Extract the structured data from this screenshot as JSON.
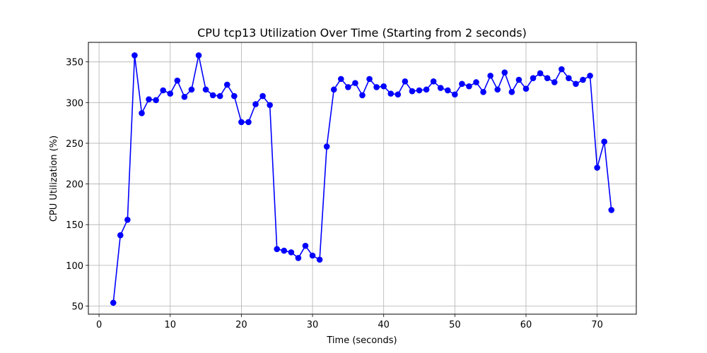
{
  "chart_data": {
    "type": "line",
    "title": "CPU tcp13 Utilization Over Time (Starting from 2 seconds)",
    "xlabel": "Time (seconds)",
    "ylabel": "CPU Utilization (%)",
    "xlim": [
      -1.5,
      75.5
    ],
    "ylim": [
      40,
      374
    ],
    "xticks": [
      0,
      10,
      20,
      30,
      40,
      50,
      60,
      70
    ],
    "yticks": [
      50,
      100,
      150,
      200,
      250,
      300,
      350
    ],
    "grid": true,
    "colors": {
      "series": "#0000ff",
      "grid": "#b0b0b0",
      "axis": "#000000"
    },
    "marker": "circle",
    "series": [
      {
        "x": [
          2,
          3,
          4,
          5,
          6,
          7,
          8,
          9,
          10,
          11,
          12,
          13,
          14,
          15,
          16,
          17,
          18,
          19,
          20,
          21,
          22,
          23,
          24,
          25,
          26,
          27,
          28,
          29,
          30,
          31,
          32,
          33,
          34,
          35,
          36,
          37,
          38,
          39,
          40,
          41,
          42,
          43,
          44,
          45,
          46,
          47,
          48,
          49,
          50,
          51,
          52,
          53,
          54,
          55,
          56,
          57,
          58,
          59,
          60,
          61,
          62,
          63,
          64,
          65,
          66,
          67,
          68,
          69,
          70,
          71,
          72
        ],
        "values": [
          54,
          137,
          156,
          358,
          287,
          304,
          303,
          315,
          311,
          327,
          307,
          316,
          358,
          316,
          309,
          308,
          322,
          308,
          276,
          276,
          298,
          308,
          297,
          120,
          118,
          116,
          109,
          124,
          112,
          107,
          246,
          316,
          329,
          319,
          324,
          309,
          329,
          319,
          320,
          311,
          310,
          326,
          314,
          315,
          316,
          326,
          318,
          315,
          310,
          323,
          320,
          325,
          313,
          333,
          316,
          337,
          313,
          328,
          317,
          330,
          336,
          330,
          325,
          341,
          330,
          323,
          328,
          333,
          220,
          252,
          168
        ]
      }
    ]
  }
}
